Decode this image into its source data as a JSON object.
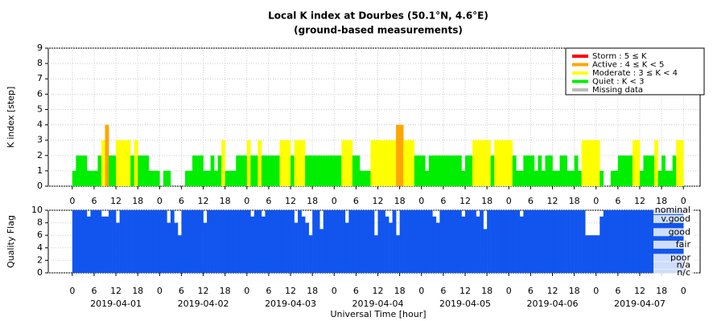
{
  "chart_data": {
    "type": "bar",
    "title": "Local K index at Dourbes (50.1°N, 4.6°E)",
    "subtitle": "(ground-based measurements)",
    "ylabel": "K index [step]",
    "y2label": "Quality Flag",
    "xlabel": "Universal Time [hour]",
    "xlim": [
      -6.6,
      172.6
    ],
    "ylim": [
      0,
      9
    ],
    "yticks": [
      0,
      1,
      2,
      3,
      4,
      5,
      6,
      7,
      8,
      9
    ],
    "qlim": [
      0,
      10
    ],
    "qticks": [
      0,
      2,
      4,
      6,
      8,
      10
    ],
    "grid": true,
    "legend_position": "upper right",
    "quality_color": "#1155ee",
    "legend": [
      {
        "name": "Storm : 5 ≤ K",
        "color": "#ff0000",
        "k_min": 5
      },
      {
        "name": "Active : 4 ≤ K < 5",
        "color": "#ffa500",
        "k_min": 4
      },
      {
        "name": "Moderate : 3 ≤ K < 4",
        "color": "#ffff00",
        "k_min": 3
      },
      {
        "name": "Quiet : K < 3",
        "color": "#00ee00",
        "k_min": 0
      },
      {
        "name": "Missing data",
        "color": "#bbbbbb"
      }
    ],
    "quality_levels": [
      {
        "value": 10,
        "label": "nominal"
      },
      {
        "value": 8.6,
        "label": "v.good"
      },
      {
        "value": 6.5,
        "label": "good"
      },
      {
        "value": 4.5,
        "label": "fair"
      },
      {
        "value": 2.4,
        "label": "poor"
      },
      {
        "value": 1.2,
        "label": "n/a"
      },
      {
        "value": 0,
        "label": "n/c"
      }
    ],
    "xticks": [
      {
        "value": 0,
        "label": "0"
      },
      {
        "value": 6,
        "label": "6"
      },
      {
        "value": 12,
        "label": "12"
      },
      {
        "value": 18,
        "label": "18"
      },
      {
        "value": 24,
        "label": "0"
      },
      {
        "value": 30,
        "label": "6"
      },
      {
        "value": 36,
        "label": "12"
      },
      {
        "value": 42,
        "label": "18"
      },
      {
        "value": 48,
        "label": "0"
      },
      {
        "value": 54,
        "label": "6"
      },
      {
        "value": 60,
        "label": "12"
      },
      {
        "value": 66,
        "label": "18"
      },
      {
        "value": 72,
        "label": "0"
      },
      {
        "value": 78,
        "label": "6"
      },
      {
        "value": 84,
        "label": "12"
      },
      {
        "value": 90,
        "label": "18"
      },
      {
        "value": 96,
        "label": "0"
      },
      {
        "value": 102,
        "label": "6"
      },
      {
        "value": 108,
        "label": "12"
      },
      {
        "value": 114,
        "label": "18"
      },
      {
        "value": 120,
        "label": "0"
      },
      {
        "value": 126,
        "label": "6"
      },
      {
        "value": 132,
        "label": "12"
      },
      {
        "value": 138,
        "label": "18"
      },
      {
        "value": 144,
        "label": "0"
      },
      {
        "value": 150,
        "label": "6"
      },
      {
        "value": 156,
        "label": "12"
      },
      {
        "value": 162,
        "label": "18"
      },
      {
        "value": 168,
        "label": "0"
      }
    ],
    "days": [
      {
        "value": 12,
        "label": "2019-04-01"
      },
      {
        "value": 36,
        "label": "2019-04-02"
      },
      {
        "value": 60,
        "label": "2019-04-03"
      },
      {
        "value": 84,
        "label": "2019-04-04"
      },
      {
        "value": 108,
        "label": "2019-04-05"
      },
      {
        "value": 132,
        "label": "2019-04-06"
      },
      {
        "value": 156,
        "label": "2019-04-07"
      }
    ],
    "x": [
      0,
      1,
      2,
      3,
      4,
      5,
      6,
      7,
      8,
      9,
      10,
      11,
      12,
      13,
      14,
      15,
      16,
      17,
      18,
      19,
      20,
      21,
      22,
      23,
      24,
      25,
      26,
      27,
      28,
      29,
      30,
      31,
      32,
      33,
      34,
      35,
      36,
      37,
      38,
      39,
      40,
      41,
      42,
      43,
      44,
      45,
      46,
      47,
      48,
      49,
      50,
      51,
      52,
      53,
      54,
      55,
      56,
      57,
      58,
      59,
      60,
      61,
      62,
      63,
      64,
      65,
      66,
      67,
      68,
      69,
      70,
      71,
      72,
      73,
      74,
      75,
      76,
      77,
      78,
      79,
      80,
      81,
      82,
      83,
      84,
      85,
      86,
      87,
      88,
      89,
      90,
      91,
      92,
      93,
      94,
      95,
      96,
      97,
      98,
      99,
      100,
      101,
      102,
      103,
      104,
      105,
      106,
      107,
      108,
      109,
      110,
      111,
      112,
      113,
      114,
      115,
      116,
      117,
      118,
      119,
      120,
      121,
      122,
      123,
      124,
      125,
      126,
      127,
      128,
      129,
      130,
      131,
      132,
      133,
      134,
      135,
      136,
      137,
      138,
      139,
      140,
      141,
      142,
      143,
      144,
      145,
      146,
      147,
      148,
      149,
      150,
      151,
      152,
      153,
      154,
      155,
      156,
      157,
      158,
      159,
      160,
      161,
      162,
      163,
      164,
      165,
      166,
      167
    ],
    "x_width": 1,
    "values": [
      1,
      2,
      2,
      2,
      1,
      1,
      1,
      2,
      3,
      4,
      2,
      2,
      3,
      3,
      3,
      3,
      2,
      3,
      2,
      2,
      2,
      1,
      1,
      1,
      0,
      1,
      1,
      0,
      0,
      0,
      0,
      1,
      1,
      2,
      2,
      2,
      1,
      1,
      2,
      1,
      2,
      3,
      1,
      1,
      1,
      2,
      2,
      2,
      3,
      2,
      2,
      3,
      2,
      2,
      2,
      2,
      2,
      3,
      3,
      3,
      2,
      3,
      3,
      3,
      2,
      2,
      2,
      2,
      2,
      2,
      2,
      2,
      2,
      2,
      3,
      3,
      3,
      2,
      2,
      1,
      1,
      1,
      3,
      3,
      3,
      3,
      3,
      3,
      3,
      4,
      4,
      3,
      3,
      3,
      2,
      2,
      2,
      1,
      2,
      2,
      2,
      2,
      2,
      2,
      2,
      2,
      2,
      1,
      2,
      2,
      3,
      3,
      3,
      3,
      3,
      2,
      3,
      3,
      3,
      3,
      3,
      2,
      1,
      1,
      2,
      2,
      2,
      1,
      2,
      1,
      2,
      2,
      1,
      1,
      2,
      2,
      1,
      1,
      2,
      1,
      3,
      3,
      3,
      3,
      3,
      1,
      0,
      0,
      1,
      1,
      2,
      2,
      2,
      2,
      3,
      3,
      1,
      2,
      2,
      2,
      3,
      1,
      2,
      1,
      1,
      2,
      3,
      3
    ],
    "quality": [
      10,
      10,
      10,
      10,
      9,
      10,
      10,
      10,
      9,
      9,
      10,
      10,
      8,
      10,
      10,
      10,
      10,
      10,
      10,
      10,
      10,
      10,
      10,
      10,
      10,
      10,
      8,
      10,
      8,
      6,
      10,
      10,
      10,
      10,
      10,
      10,
      8,
      10,
      10,
      10,
      10,
      10,
      10,
      10,
      10,
      10,
      10,
      10,
      10,
      9,
      10,
      10,
      9,
      10,
      10,
      10,
      10,
      10,
      10,
      10,
      10,
      8,
      10,
      9,
      8,
      6,
      10,
      10,
      7,
      10,
      10,
      10,
      10,
      10,
      10,
      8,
      10,
      10,
      10,
      10,
      10,
      10,
      10,
      6,
      10,
      10,
      9,
      8,
      10,
      6,
      10,
      10,
      10,
      10,
      10,
      10,
      10,
      10,
      10,
      9,
      8,
      10,
      10,
      10,
      10,
      10,
      10,
      9,
      10,
      10,
      10,
      9,
      10,
      7,
      10,
      10,
      10,
      10,
      10,
      10,
      10,
      10,
      10,
      9,
      10,
      10,
      10,
      10,
      10,
      10,
      10,
      10,
      10,
      10,
      10,
      10,
      10,
      10,
      10,
      10,
      10,
      6,
      6,
      6,
      6,
      9,
      10,
      10,
      10,
      10,
      10,
      10,
      10,
      10,
      10,
      10,
      10,
      10,
      10,
      10,
      10,
      10,
      10,
      10,
      10,
      10,
      10,
      10
    ]
  }
}
